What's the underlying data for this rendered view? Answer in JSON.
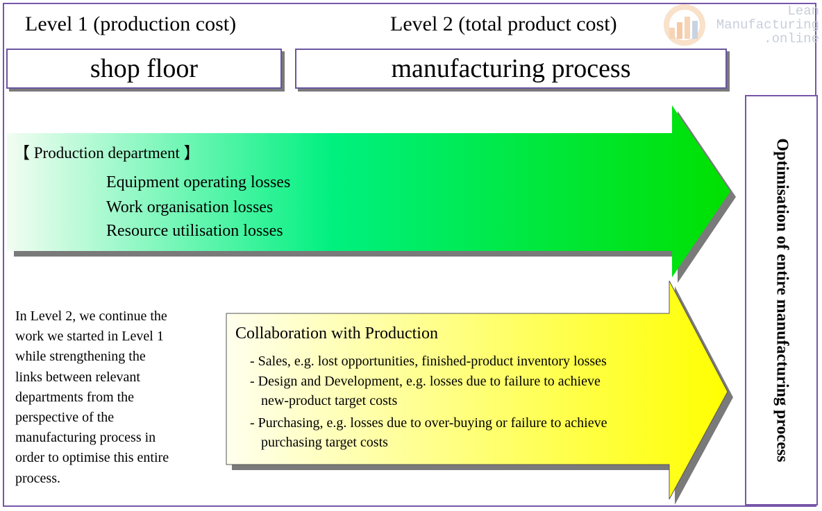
{
  "header": {
    "level1_label": "Level 1 (production cost)",
    "level2_label": "Level 2 (total product cost)"
  },
  "boxes": {
    "shop_floor": "shop floor",
    "manufacturing_process": "manufacturing process"
  },
  "green_arrow": {
    "heading": "【 Production department 】",
    "items": [
      "Equipment operating losses",
      "Work organisation losses",
      "Resource utilisation losses"
    ]
  },
  "yellow_arrow": {
    "heading": "Collaboration with Production",
    "lines": [
      "- Sales, e.g. lost opportunities, finished-product inventory losses",
      "- Design and Development, e.g. losses due to failure to achieve",
      "new-product target costs",
      "- Purchasing, e.g. losses due to over-buying or failure to achieve",
      "purchasing target costs"
    ]
  },
  "note": {
    "lines": [
      "In Level 2, we continue the",
      "work we started in Level 1",
      "while strengthening the",
      "links between relevant",
      "departments from the",
      "perspective of the",
      "manufacturing process in",
      "order to optimise this entire",
      "process."
    ]
  },
  "side_label": "Optimisation of entire manufacturing process",
  "watermark": {
    "lines": [
      "Lean",
      "Manufacturing",
      ".online"
    ]
  },
  "colors": {
    "frame": "#7755aa",
    "green_start": "#f2fdf2",
    "green_end": "#00e600",
    "yellow_start": "#ffffee",
    "yellow_end": "#ffff00",
    "shadow": "#7a7a7a"
  }
}
